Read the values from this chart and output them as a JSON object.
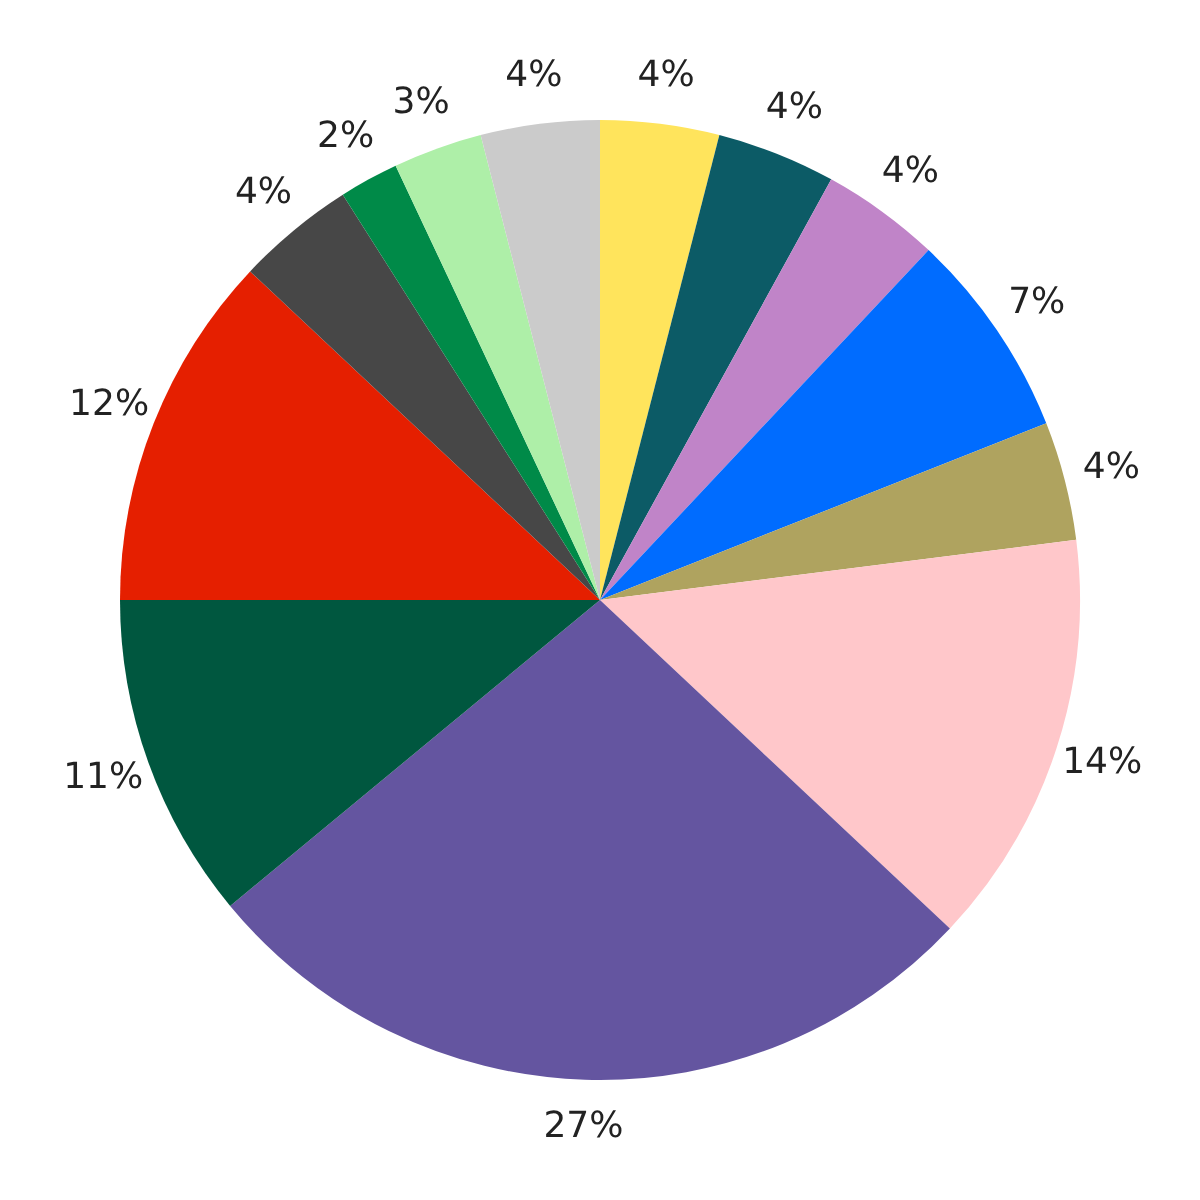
{
  "chart_data": {
    "type": "pie",
    "categories": [
      null,
      null,
      null,
      null,
      null,
      null,
      null,
      null,
      null,
      null,
      null,
      null,
      null
    ],
    "values": [
      4,
      4,
      4,
      7,
      4,
      14,
      27,
      11,
      12,
      4,
      2,
      3,
      4
    ],
    "colors": [
      "#ffe45c",
      "#0c5b66",
      "#c084c8",
      "#006cff",
      "#afa35f",
      "#ffc7ca",
      "#6455a0",
      "#00573f",
      "#e51f00",
      "#474747",
      "#008a48",
      "#aeefa8",
      "#cbcbcb"
    ],
    "value_labels": [
      "4%",
      "4%",
      "4%",
      "7%",
      "4%",
      "14%",
      "27%",
      "11%",
      "12%",
      "4%",
      "2%",
      "3%",
      "4%"
    ],
    "legend": false
  }
}
